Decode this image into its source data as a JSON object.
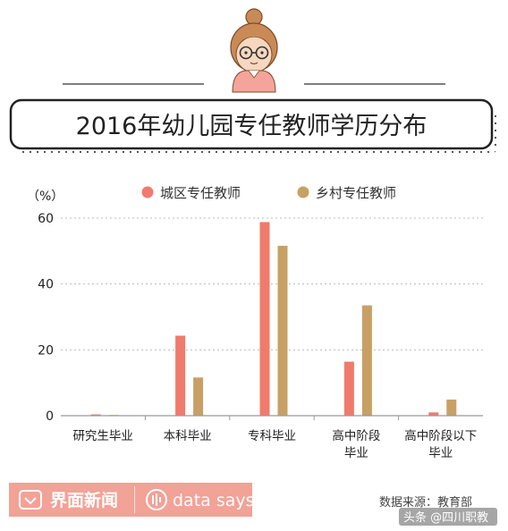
{
  "chart_data": {
    "type": "bar",
    "title": "2016年幼儿园专任教师学历分布",
    "unit_label": "（%）",
    "categories": [
      [
        "研究生毕业"
      ],
      [
        "本科毕业"
      ],
      [
        "专科毕业"
      ],
      [
        "高中阶段",
        "毕业"
      ],
      [
        "高中阶段以下",
        "毕业"
      ]
    ],
    "series": [
      {
        "name": "城区专任教师",
        "color": "#f07b6c",
        "values": [
          0.4,
          24.3,
          58.8,
          16.4,
          1.0
        ]
      },
      {
        "name": "乡村专任教师",
        "color": "#c9a064",
        "values": [
          0.2,
          11.6,
          51.6,
          33.5,
          4.9
        ]
      }
    ],
    "ylim": [
      0,
      60
    ],
    "yticks": [
      0,
      20,
      40,
      60
    ],
    "grid": true,
    "legend_position": "top"
  },
  "footer": {
    "brand": "界面新闻",
    "tagline": "data says",
    "source": "数据来源：教育部",
    "watermark": "头条 @四川职教"
  },
  "colors": {
    "header_pink": "#f4a49a",
    "footer_bar": "#f2a296",
    "axis": "#999999",
    "grid": "#bbbbbb"
  },
  "icons": [
    "cartoon-girl-avatar",
    "jiemian-logo-icon",
    "data-says-logo-icon"
  ]
}
